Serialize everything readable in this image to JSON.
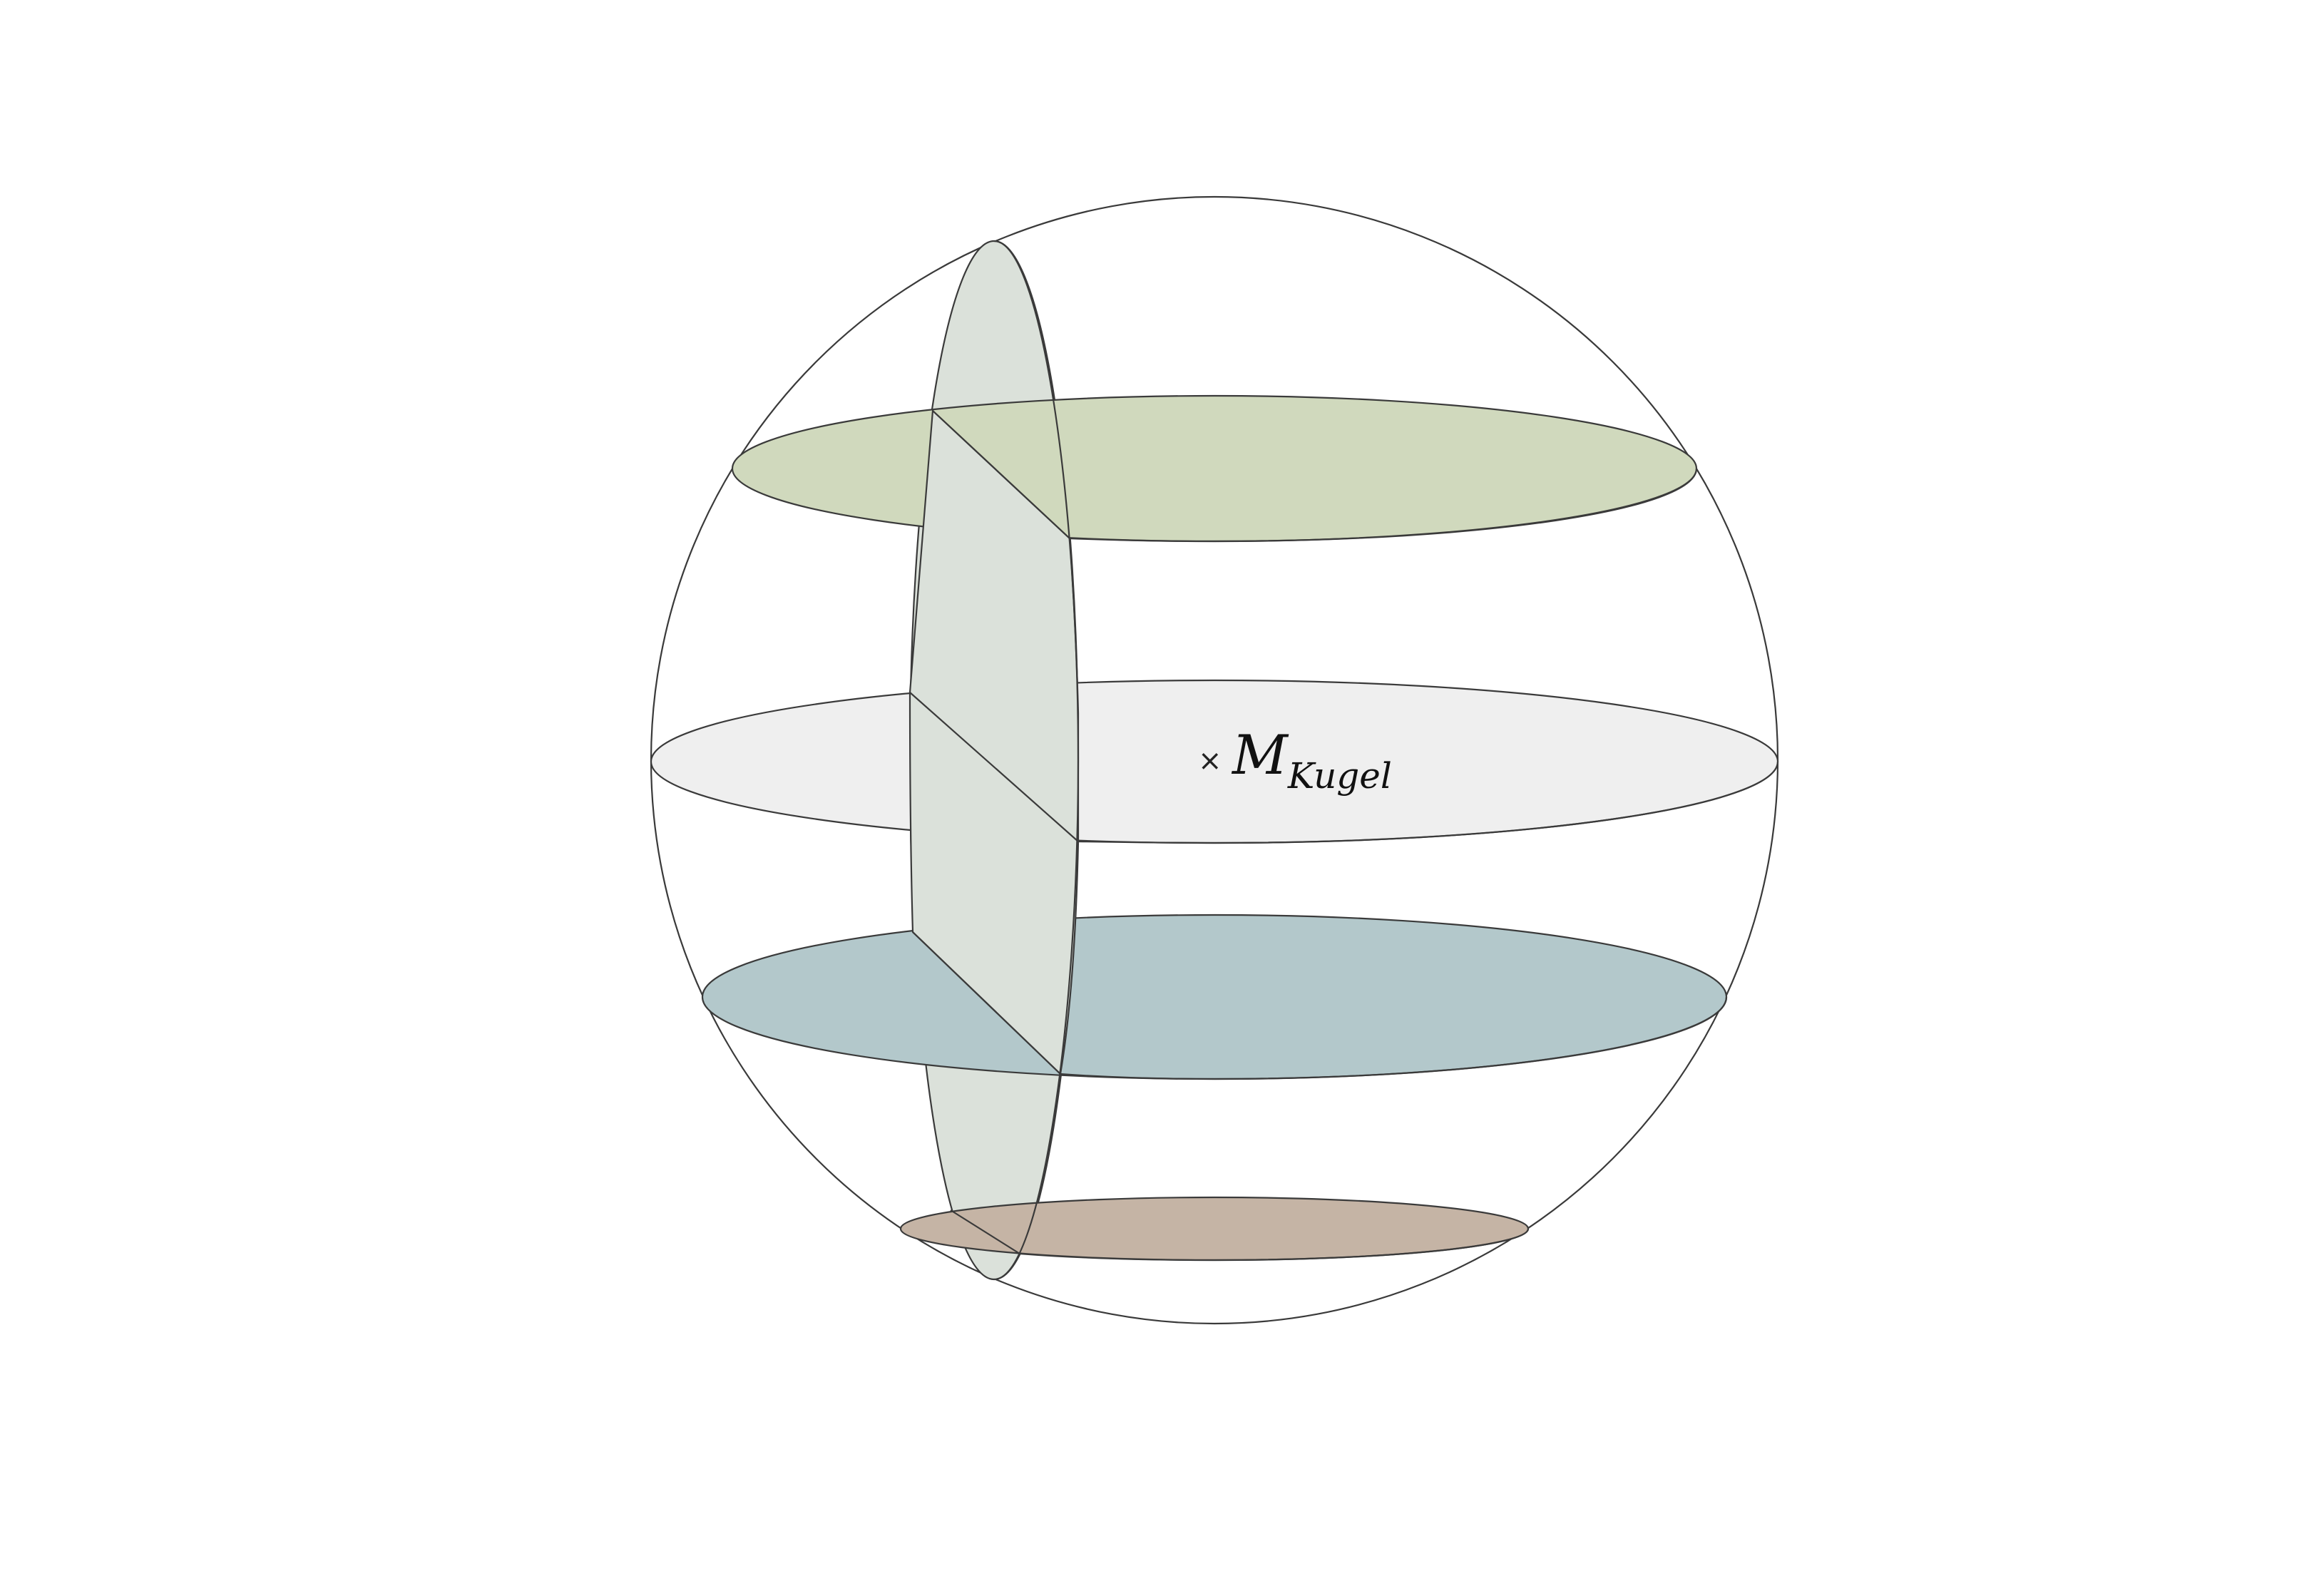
{
  "label": {
    "marker": "×",
    "main": "M",
    "subscript": "Kugel"
  },
  "colors": {
    "top_section": "#d0d9bd",
    "equator_section": "#efefef",
    "lower_section": "#b3c8cb",
    "bottom_section": "#c5b4a5",
    "vertical_section": "#dbe1da",
    "stroke": "#3a3a3a"
  }
}
